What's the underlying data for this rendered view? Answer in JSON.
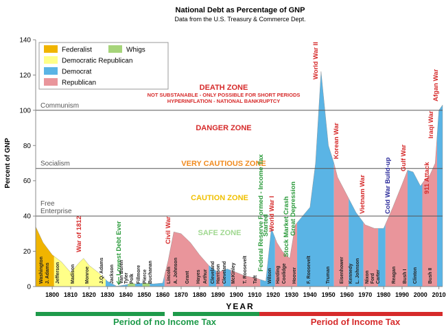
{
  "chart_data": {
    "type": "area",
    "title": "National Debt as Percentage of GNP",
    "subtitle": "Data from the U.S. Treasury & Commerce Dept.",
    "y_label": "Percent of GNP",
    "x_label": "YEAR",
    "xlim": [
      1791,
      2012
    ],
    "xticks": [
      1800,
      1810,
      1820,
      1830,
      1840,
      1850,
      1860,
      1870,
      1880,
      1890,
      1900,
      1910,
      1920,
      1930,
      1940,
      1950,
      1960,
      1970,
      1980,
      1990,
      2000,
      2010
    ],
    "ylim": [
      0,
      140
    ],
    "yticks": [
      0,
      20,
      40,
      60,
      80,
      100,
      120,
      140
    ],
    "series": [
      {
        "name": "Federalist",
        "color": "#f0b400"
      },
      {
        "name": "Whigs",
        "color": "#a6d47a"
      },
      {
        "name": "Democratic Republican",
        "color": "#ffff88"
      },
      {
        "name": "Democrat",
        "color": "#5ab4e5"
      },
      {
        "name": "Republican",
        "color": "#e9959b"
      }
    ],
    "x": [
      1791,
      1795,
      1800,
      1805,
      1810,
      1815,
      1817,
      1820,
      1825,
      1830,
      1835,
      1837,
      1840,
      1843,
      1845,
      1850,
      1855,
      1860,
      1863,
      1866,
      1870,
      1875,
      1880,
      1885,
      1890,
      1895,
      1900,
      1905,
      1910,
      1916,
      1919,
      1922,
      1925,
      1929,
      1932,
      1936,
      1940,
      1943,
      1946,
      1950,
      1953,
      1955,
      1960,
      1965,
      1970,
      1975,
      1980,
      1985,
      1990,
      1993,
      1996,
      2000,
      2002,
      2005,
      2008,
      2010,
      2012
    ],
    "values": [
      34,
      25,
      18,
      14,
      8,
      14,
      16,
      12,
      8,
      3,
      0.2,
      0.5,
      1,
      2,
      1.5,
      2,
      1.5,
      2,
      15,
      31,
      30,
      25,
      18,
      12,
      8,
      10,
      8,
      6,
      5,
      3,
      33,
      25,
      20,
      16,
      35,
      40,
      45,
      70,
      122,
      80,
      70,
      62,
      52,
      42,
      35,
      33,
      33,
      45,
      58,
      66,
      65,
      57,
      60,
      63,
      70,
      100,
      103
    ],
    "segments": [
      {
        "color": "#f0b400",
        "start": 1791,
        "end": 1801
      },
      {
        "color": "#ffff88",
        "start": 1801,
        "end": 1829
      },
      {
        "color": "#5ab4e5",
        "start": 1829,
        "end": 1841
      },
      {
        "color": "#a6d47a",
        "start": 1841,
        "end": 1845
      },
      {
        "color": "#5ab4e5",
        "start": 1845,
        "end": 1849
      },
      {
        "color": "#a6d47a",
        "start": 1849,
        "end": 1853
      },
      {
        "color": "#5ab4e5",
        "start": 1853,
        "end": 1861
      },
      {
        "color": "#e9959b",
        "start": 1861,
        "end": 1885
      },
      {
        "color": "#5ab4e5",
        "start": 1885,
        "end": 1889
      },
      {
        "color": "#e9959b",
        "start": 1889,
        "end": 1893
      },
      {
        "color": "#5ab4e5",
        "start": 1893,
        "end": 1897
      },
      {
        "color": "#e9959b",
        "start": 1897,
        "end": 1913
      },
      {
        "color": "#5ab4e5",
        "start": 1913,
        "end": 1921
      },
      {
        "color": "#e9959b",
        "start": 1921,
        "end": 1933
      },
      {
        "color": "#5ab4e5",
        "start": 1933,
        "end": 1953
      },
      {
        "color": "#e9959b",
        "start": 1953,
        "end": 1961
      },
      {
        "color": "#5ab4e5",
        "start": 1961,
        "end": 1969
      },
      {
        "color": "#e9959b",
        "start": 1969,
        "end": 1977
      },
      {
        "color": "#5ab4e5",
        "start": 1977,
        "end": 1981
      },
      {
        "color": "#e9959b",
        "start": 1981,
        "end": 1993
      },
      {
        "color": "#5ab4e5",
        "start": 1993,
        "end": 2001
      },
      {
        "color": "#e9959b",
        "start": 2001,
        "end": 2009
      },
      {
        "color": "#5ab4e5",
        "start": 2009,
        "end": 2012
      }
    ],
    "reference_lines": [
      {
        "labels": [
          "Communism"
        ],
        "value": 100
      },
      {
        "labels": [
          "Socialism"
        ],
        "value": 67
      },
      {
        "labels": [
          "Free",
          "Enterprise"
        ],
        "value": 40
      }
    ],
    "zones": [
      "DEATH ZONE",
      "NOT SUBSTANABLE - ONLY POSSIBLE FOR SHORT PERIODS",
      "HYPERINFLATION - NATIONAL BANKRUPTCY",
      "DANGER ZONE",
      "VERY CAUTIOUS ZONE",
      "CAUTION ZONE",
      "SAFE ZONE"
    ],
    "events": [
      "War of 1812",
      "Lowest Debt Ever",
      "Civil War",
      "Federal Reserve Formed - Income Tax",
      "Started",
      "World War I",
      "Stock Market Crash",
      "Great Depression",
      "World War II",
      "Korean War",
      "Vietnam War",
      "Cold War Build-up",
      "Gulf War",
      "911 Attack",
      "Iraqi War",
      "Afgan War"
    ],
    "presidents": [
      "Washington",
      "J. Adams",
      "Jefferson",
      "Madison",
      "Monroe",
      "J.Q. Adams",
      "Jackson",
      "Van Buren",
      "Tyler",
      "Polk",
      "Fillmore",
      "Pierce",
      "Buchanan",
      "Lincoln",
      "A. Johnson",
      "Grant",
      "Hayes",
      "Arthur",
      "Cleveland",
      "Harrison",
      "Cleveland",
      "McKinley",
      "T. Roosevelt",
      "Taft",
      "Wilson",
      "Harding",
      "Coolidge",
      "Hoover",
      "F. Roosevelt",
      "Truman",
      "Eisenhower",
      "Kennedy",
      "L. Johnson",
      "Nixon",
      "Ford",
      "Carter",
      "Reagan",
      "Bush I",
      "Clinton",
      "Bush II"
    ],
    "periods": [
      "Period of no Income Tax",
      "Period of Income Tax"
    ]
  }
}
